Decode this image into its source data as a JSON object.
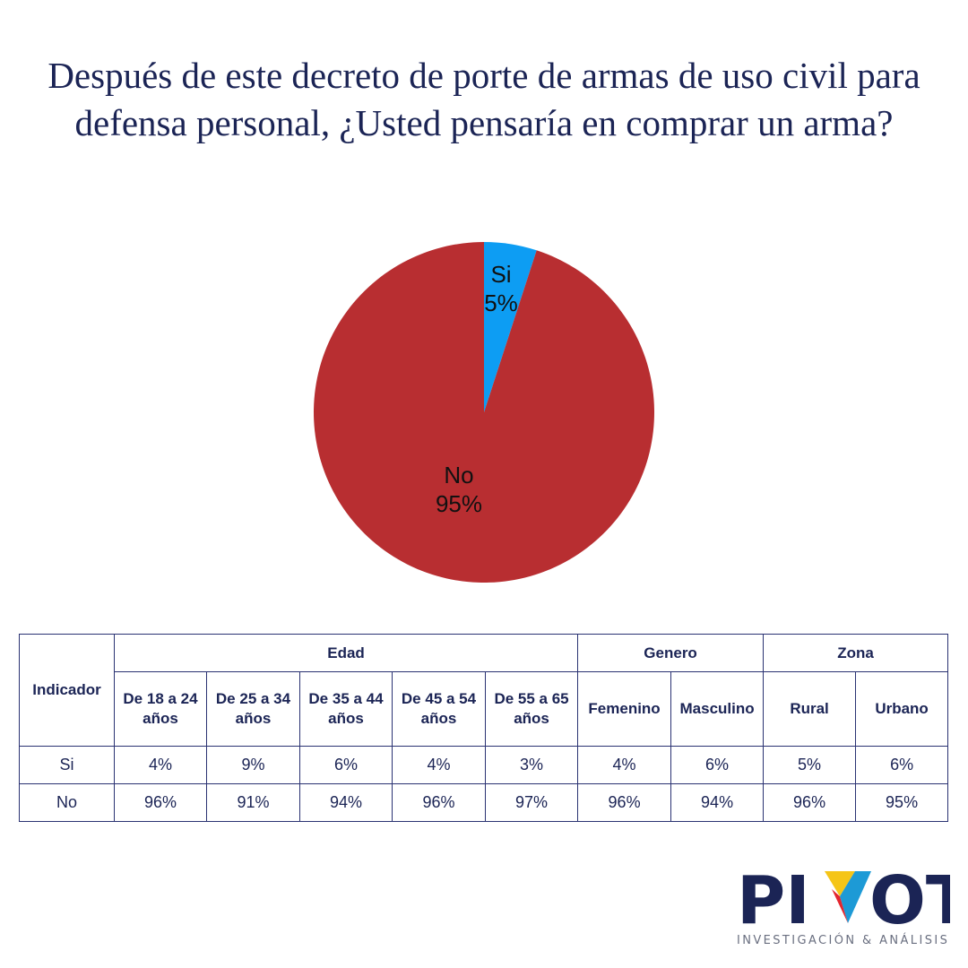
{
  "title": "Después de este decreto de porte de armas de uso civil para defensa personal, ¿Usted pensaría en comprar un arma?",
  "chart_data": {
    "type": "pie",
    "title": "Después de este decreto de porte de armas de uso civil para defensa personal, ¿Usted pensaría en comprar un arma?",
    "slices": [
      {
        "label": "Si",
        "value": 5,
        "value_label": "5%",
        "color": "#0d9df3"
      },
      {
        "label": "No",
        "value": 95,
        "value_label": "95%",
        "color": "#b82e31"
      }
    ]
  },
  "table": {
    "corner_header": "Indicador",
    "groups": [
      "Edad",
      "Genero",
      "Zona"
    ],
    "columns": [
      [
        "De 18 a 24",
        "años"
      ],
      [
        "De 25 a 34",
        "años"
      ],
      [
        "De 35 a 44",
        "años"
      ],
      [
        "De 45 a 54",
        "años"
      ],
      [
        "De 55 a 65",
        "años"
      ],
      [
        "Femenino"
      ],
      [
        "Masculino"
      ],
      [
        "Rural"
      ],
      [
        "Urbano"
      ]
    ],
    "rows": [
      {
        "label": "Si",
        "values": [
          "4%",
          "9%",
          "6%",
          "4%",
          "3%",
          "4%",
          "6%",
          "5%",
          "6%"
        ]
      },
      {
        "label": "No",
        "values": [
          "96%",
          "91%",
          "94%",
          "96%",
          "97%",
          "96%",
          "94%",
          "96%",
          "95%"
        ]
      }
    ]
  },
  "logo": {
    "word": "PIVOT",
    "tagline": "INVESTIGACIÓN & ANÁLISIS",
    "colors": {
      "navy": "#1b2455",
      "yellow": "#f5c518",
      "red": "#e4262f",
      "blue": "#1d9ad6"
    }
  }
}
